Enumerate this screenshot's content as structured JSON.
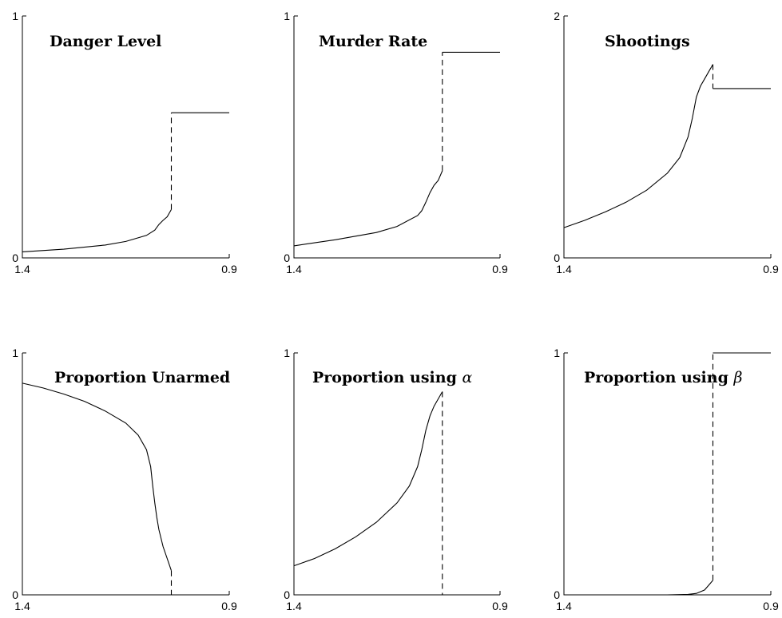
{
  "chart_data": [
    {
      "type": "line",
      "title": "Danger Level",
      "title_symbol": "",
      "xlim": [
        1.4,
        0.9
      ],
      "ylim": [
        0,
        1
      ],
      "x_ticks": [
        "1.4",
        "0.9"
      ],
      "y_ticks": [
        "0",
        "1"
      ],
      "series": [
        {
          "style": "solid",
          "x": [
            1.4,
            1.3,
            1.2,
            1.15,
            1.1,
            1.08,
            1.07,
            1.06,
            1.05,
            1.04
          ],
          "y": [
            0.025,
            0.036,
            0.053,
            0.068,
            0.093,
            0.115,
            0.138,
            0.155,
            0.17,
            0.2
          ]
        },
        {
          "style": "dashed",
          "x": [
            1.04,
            1.04
          ],
          "y": [
            0.2,
            0.6
          ]
        },
        {
          "style": "solid",
          "x": [
            1.04,
            0.9
          ],
          "y": [
            0.6,
            0.6
          ]
        }
      ]
    },
    {
      "type": "line",
      "title": "Murder Rate",
      "title_symbol": "",
      "xlim": [
        1.4,
        0.9
      ],
      "ylim": [
        0,
        1
      ],
      "x_ticks": [
        "1.4",
        "0.9"
      ],
      "y_ticks": [
        "0",
        "1"
      ],
      "series": [
        {
          "style": "solid",
          "x": [
            1.4,
            1.3,
            1.2,
            1.15,
            1.1,
            1.09,
            1.08,
            1.07,
            1.06,
            1.05,
            1.04
          ],
          "y": [
            0.05,
            0.075,
            0.105,
            0.13,
            0.175,
            0.195,
            0.23,
            0.27,
            0.3,
            0.32,
            0.36
          ]
        },
        {
          "style": "dashed",
          "x": [
            1.04,
            1.04
          ],
          "y": [
            0.36,
            0.85
          ]
        },
        {
          "style": "solid",
          "x": [
            1.04,
            0.9
          ],
          "y": [
            0.85,
            0.85
          ]
        }
      ]
    },
    {
      "type": "line",
      "title": "Shootings",
      "title_symbol": "",
      "xlim": [
        1.4,
        0.9
      ],
      "ylim": [
        0,
        2
      ],
      "x_ticks": [
        "1.4",
        "0.9"
      ],
      "y_ticks": [
        "0",
        "2"
      ],
      "series": [
        {
          "style": "solid",
          "x": [
            1.4,
            1.35,
            1.3,
            1.25,
            1.2,
            1.15,
            1.12,
            1.1,
            1.09,
            1.08,
            1.07,
            1.06,
            1.05,
            1.04
          ],
          "y": [
            0.25,
            0.31,
            0.38,
            0.46,
            0.56,
            0.7,
            0.83,
            1.0,
            1.15,
            1.33,
            1.42,
            1.48,
            1.54,
            1.6
          ]
        },
        {
          "style": "dashed",
          "x": [
            1.04,
            1.04
          ],
          "y": [
            1.6,
            1.4
          ]
        },
        {
          "style": "solid",
          "x": [
            1.04,
            0.9
          ],
          "y": [
            1.4,
            1.4
          ]
        }
      ]
    },
    {
      "type": "line",
      "title": "Proportion Unarmed",
      "title_symbol": "",
      "xlim": [
        1.4,
        0.9
      ],
      "ylim": [
        0,
        1
      ],
      "x_ticks": [
        "1.4",
        "0.9"
      ],
      "y_ticks": [
        "0",
        "1"
      ],
      "series": [
        {
          "style": "solid",
          "x": [
            1.4,
            1.35,
            1.3,
            1.25,
            1.2,
            1.15,
            1.12,
            1.1,
            1.09,
            1.085,
            1.08,
            1.075,
            1.07,
            1.06,
            1.05,
            1.04
          ],
          "y": [
            0.875,
            0.855,
            0.83,
            0.8,
            0.76,
            0.71,
            0.66,
            0.6,
            0.53,
            0.45,
            0.38,
            0.32,
            0.27,
            0.2,
            0.15,
            0.1
          ]
        },
        {
          "style": "dashed",
          "x": [
            1.04,
            1.04
          ],
          "y": [
            0.1,
            0.0
          ]
        },
        {
          "style": "solid",
          "x": [
            1.04,
            0.9
          ],
          "y": [
            0.0,
            0.0
          ]
        }
      ]
    },
    {
      "type": "line",
      "title": "Proportion using ",
      "title_symbol": "α",
      "xlim": [
        1.4,
        0.9
      ],
      "ylim": [
        0,
        1
      ],
      "x_ticks": [
        "1.4",
        "0.9"
      ],
      "y_ticks": [
        "0",
        "1"
      ],
      "series": [
        {
          "style": "solid",
          "x": [
            1.4,
            1.35,
            1.3,
            1.25,
            1.2,
            1.15,
            1.12,
            1.1,
            1.09,
            1.08,
            1.07,
            1.06,
            1.05,
            1.04
          ],
          "y": [
            0.12,
            0.15,
            0.19,
            0.24,
            0.3,
            0.38,
            0.45,
            0.53,
            0.6,
            0.68,
            0.74,
            0.78,
            0.81,
            0.84
          ]
        },
        {
          "style": "dashed",
          "x": [
            1.04,
            1.04
          ],
          "y": [
            0.84,
            0.0
          ]
        },
        {
          "style": "solid",
          "x": [
            1.04,
            0.9
          ],
          "y": [
            0.0,
            0.0
          ]
        }
      ]
    },
    {
      "type": "line",
      "title": "Proportion using ",
      "title_symbol": "β",
      "xlim": [
        1.4,
        0.9
      ],
      "ylim": [
        0,
        1
      ],
      "x_ticks": [
        "1.4",
        "0.9"
      ],
      "y_ticks": [
        "0",
        "1"
      ],
      "series": [
        {
          "style": "solid",
          "x": [
            1.4,
            1.3,
            1.2,
            1.15,
            1.1,
            1.08,
            1.06,
            1.05,
            1.04
          ],
          "y": [
            0.0,
            0.0,
            0.0,
            0.0,
            0.002,
            0.006,
            0.02,
            0.04,
            0.06
          ]
        },
        {
          "style": "dashed",
          "x": [
            1.04,
            1.04
          ],
          "y": [
            0.06,
            1.0
          ]
        },
        {
          "style": "solid",
          "x": [
            1.04,
            0.9
          ],
          "y": [
            1.0,
            1.0
          ]
        }
      ]
    }
  ]
}
